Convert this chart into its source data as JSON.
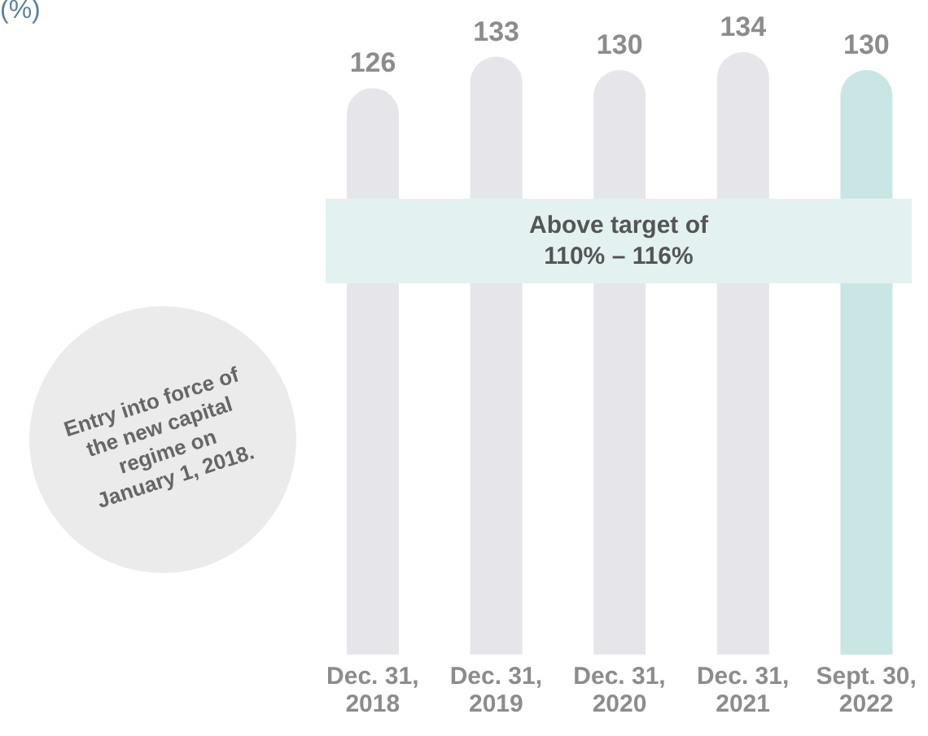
{
  "chart_data": {
    "type": "bar",
    "categories": [
      "Dec. 31, 2018",
      "Dec. 31, 2019",
      "Dec. 31, 2020",
      "Dec. 31, 2021",
      "Sept. 30, 2022"
    ],
    "values": [
      126,
      133,
      130,
      134,
      130
    ],
    "colors": [
      "#e6e6ea",
      "#e6e6ea",
      "#e6e6ea",
      "#e6e6ea",
      "#c9e6e4"
    ],
    "tick_labels": "x",
    "data_labels": true,
    "annotations": [
      "(%)",
      "Above target of 110% – 116%",
      "Entry into force of the new capital regime on January 1, 2018."
    ]
  }
}
